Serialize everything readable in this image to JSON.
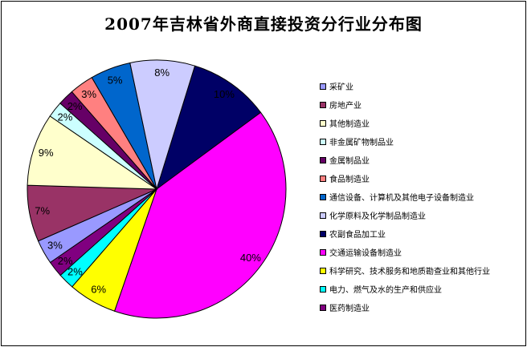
{
  "chart_data": {
    "type": "pie",
    "title": "2007年吉林省外商直接投资分行业分布图",
    "slices": [
      {
        "name": "农副食品加工业",
        "value": 10,
        "label": "10%",
        "color": "#000066"
      },
      {
        "name": "交通运输设备制造业",
        "value": 40,
        "label": "40%",
        "color": "#FF00FF"
      },
      {
        "name": "科学研究、技术服务和地质勘查业和其他行业",
        "value": 6,
        "label": "6%",
        "color": "#FFFF00"
      },
      {
        "name": "电力、燃气及水的生产和供应业",
        "value": 2,
        "label": "2%",
        "color": "#00FFFF"
      },
      {
        "name": "医药制造业",
        "value": 2,
        "label": "2%",
        "color": "#800080"
      },
      {
        "name": "采矿业",
        "value": 3,
        "label": "3%",
        "color": "#9999FF"
      },
      {
        "name": "房地产业",
        "value": 7,
        "label": "7%",
        "color": "#993366"
      },
      {
        "name": "其他制造业",
        "value": 9,
        "label": "9%",
        "color": "#FFFFCC"
      },
      {
        "name": "非金属矿物制品业",
        "value": 2,
        "label": "2%",
        "color": "#CCFFFF"
      },
      {
        "name": "金属制品业",
        "value": 2,
        "label": "2%",
        "color": "#660066"
      },
      {
        "name": "食品制造业",
        "value": 3,
        "label": "3%",
        "color": "#FF8080"
      },
      {
        "name": "通信设备、计算机及其他电子设备制造业",
        "value": 5,
        "label": "5%",
        "color": "#0066CC"
      },
      {
        "name": "化学原料及化学制品制造业",
        "value": 8,
        "label": "8%",
        "color": "#CCCCFF"
      }
    ],
    "legend": {
      "position": "right",
      "order": [
        "采矿业",
        "房地产业",
        "其他制造业",
        "非金属矿物制品业",
        "金属制品业",
        "食品制造业",
        "通信设备、计算机及其他电子设备制造业",
        "化学原料及化学制品制造业",
        "农副食品加工业",
        "交通运输设备制造业",
        "科学研究、技术服务和地质勘查业和其他行业",
        "电力、燃气及水的生产和供应业",
        "医药制造业"
      ]
    }
  }
}
